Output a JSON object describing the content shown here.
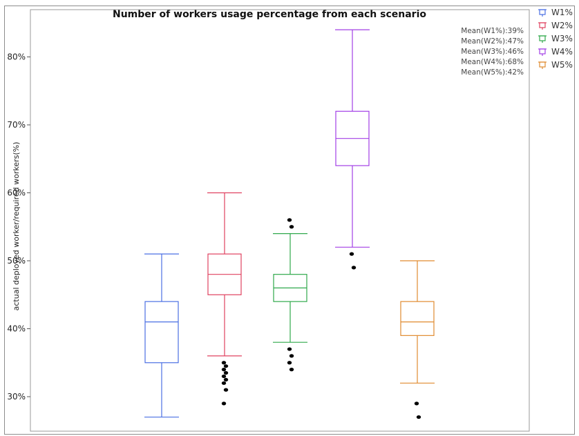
{
  "chart_data": {
    "type": "box",
    "title": "Number of workers usage percentage from each scenario",
    "xlabel": "",
    "ylabel": "actual deployed worker/required workers(%)",
    "ylim": [
      25,
      86
    ],
    "yticks": [
      30,
      40,
      50,
      60,
      70,
      80
    ],
    "ytick_labels": [
      "30%",
      "40%",
      "50%",
      "60%",
      "70%",
      "80%"
    ],
    "grid": false,
    "legend_position": "top-right",
    "means_text": [
      "Mean(W1%):39%",
      "Mean(W2%):47%",
      "Mean(W3%):46%",
      "Mean(W4%):68%",
      "Mean(W5%):42%"
    ],
    "series": [
      {
        "name": "W1%",
        "color": "#4a6fe3",
        "min": 27,
        "q1": 35,
        "median": 41,
        "q3": 44,
        "max": 51,
        "outliers": []
      },
      {
        "name": "W2%",
        "color": "#e0415f",
        "min": 36,
        "q1": 45,
        "median": 48,
        "q3": 51,
        "max": 60,
        "outliers": [
          35,
          34.5,
          34,
          33.5,
          33,
          32.5,
          32,
          31,
          29
        ]
      },
      {
        "name": "W3%",
        "color": "#2ea84a",
        "min": 38,
        "q1": 44,
        "median": 46,
        "q3": 48,
        "max": 54,
        "outliers": [
          56,
          55,
          37,
          36,
          35,
          34
        ]
      },
      {
        "name": "W4%",
        "color": "#a23ee6",
        "min": 52,
        "q1": 64,
        "median": 68,
        "q3": 72,
        "max": 84,
        "outliers": [
          51,
          49
        ]
      },
      {
        "name": "W5%",
        "color": "#e08a2e",
        "min": 32,
        "q1": 39,
        "median": 41,
        "q3": 44,
        "max": 50,
        "outliers": [
          29,
          27
        ]
      }
    ]
  }
}
